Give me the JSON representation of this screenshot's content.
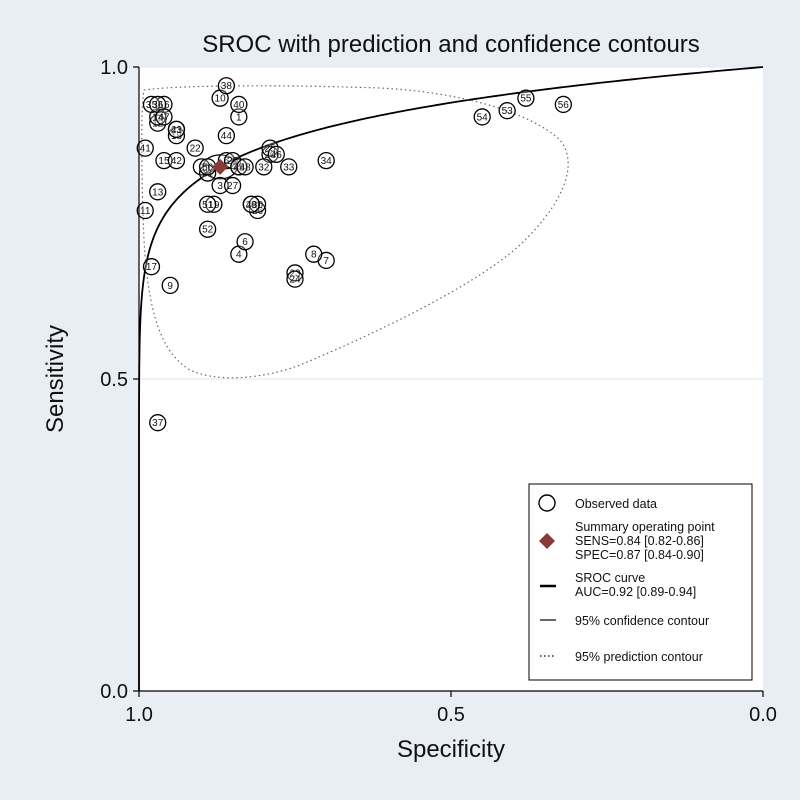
{
  "chart_data": {
    "type": "scatter",
    "title": "SROC with prediction and confidence contours",
    "xlabel": "Specificity",
    "ylabel": "Sensitivity",
    "xlim": [
      1.0,
      0.0
    ],
    "ylim": [
      0.0,
      1.0
    ],
    "x_ticks": [
      "1.0",
      "0.5",
      "0.0"
    ],
    "y_ticks": [
      "0.0",
      "0.5",
      "1.0"
    ],
    "grid": "horizontal",
    "legend_position": "bottom-right",
    "legend": {
      "observed": "Observed data",
      "summary_title": "Summary operating point",
      "summary_sens": "SENS=0.84 [0.82-0.86]",
      "summary_spec": "SPEC=0.87 [0.84-0.90]",
      "sroc_title": "SROC curve",
      "sroc_auc": "AUC=0.92 [0.89-0.94]",
      "confidence": "95% confidence contour",
      "prediction": "95% prediction contour"
    },
    "summary_point": {
      "specificity": 0.87,
      "sensitivity": 0.84
    },
    "colors": {
      "background": "#e8eef3",
      "plot_area": "#ffffff",
      "summary": "#8b3a3a",
      "grid": "#e6ecf1"
    },
    "points": [
      {
        "label": "1",
        "spec": 0.84,
        "sens": 0.92
      },
      {
        "label": "2",
        "spec": 0.9,
        "sens": 0.84
      },
      {
        "label": "3",
        "spec": 0.87,
        "sens": 0.81
      },
      {
        "label": "4",
        "spec": 0.84,
        "sens": 0.7
      },
      {
        "label": "5",
        "spec": 0.86,
        "sens": 0.85
      },
      {
        "label": "6",
        "spec": 0.83,
        "sens": 0.72
      },
      {
        "label": "7",
        "spec": 0.7,
        "sens": 0.69
      },
      {
        "label": "8",
        "spec": 0.72,
        "sens": 0.7
      },
      {
        "label": "9",
        "spec": 0.95,
        "sens": 0.65
      },
      {
        "label": "10",
        "spec": 0.87,
        "sens": 0.95
      },
      {
        "label": "11",
        "spec": 0.99,
        "sens": 0.77
      },
      {
        "label": "12",
        "spec": 0.97,
        "sens": 0.91
      },
      {
        "label": "13",
        "spec": 0.97,
        "sens": 0.8
      },
      {
        "label": "14",
        "spec": 0.97,
        "sens": 0.92
      },
      {
        "label": "15",
        "spec": 0.96,
        "sens": 0.85
      },
      {
        "label": "16",
        "spec": 0.96,
        "sens": 0.94
      },
      {
        "label": "17",
        "spec": 0.98,
        "sens": 0.68
      },
      {
        "label": "18",
        "spec": 0.94,
        "sens": 0.89
      },
      {
        "label": "19",
        "spec": 0.88,
        "sens": 0.78
      },
      {
        "label": "20",
        "spec": 0.79,
        "sens": 0.86
      },
      {
        "label": "21",
        "spec": 0.94,
        "sens": 0.9
      },
      {
        "label": "22",
        "spec": 0.91,
        "sens": 0.87
      },
      {
        "label": "23",
        "spec": 0.75,
        "sens": 0.67
      },
      {
        "label": "24",
        "spec": 0.75,
        "sens": 0.66
      },
      {
        "label": "25",
        "spec": 0.79,
        "sens": 0.87
      },
      {
        "label": "26",
        "spec": 0.81,
        "sens": 0.77
      },
      {
        "label": "27",
        "spec": 0.85,
        "sens": 0.81
      },
      {
        "label": "28",
        "spec": 0.82,
        "sens": 0.78
      },
      {
        "label": "29",
        "spec": 0.85,
        "sens": 0.85
      },
      {
        "label": "30",
        "spec": 0.81,
        "sens": 0.78
      },
      {
        "label": "31",
        "spec": 0.89,
        "sens": 0.83
      },
      {
        "label": "32",
        "spec": 0.8,
        "sens": 0.84
      },
      {
        "label": "33",
        "spec": 0.76,
        "sens": 0.84
      },
      {
        "label": "34",
        "spec": 0.7,
        "sens": 0.85
      },
      {
        "label": "35",
        "spec": 0.98,
        "sens": 0.94
      },
      {
        "label": "36",
        "spec": 0.97,
        "sens": 0.94
      },
      {
        "label": "37",
        "spec": 0.97,
        "sens": 0.43
      },
      {
        "label": "38",
        "spec": 0.86,
        "sens": 0.97
      },
      {
        "label": "39",
        "spec": 0.84,
        "sens": 0.84
      },
      {
        "label": "40",
        "spec": 0.84,
        "sens": 0.94
      },
      {
        "label": "41",
        "spec": 0.99,
        "sens": 0.87
      },
      {
        "label": "42",
        "spec": 0.94,
        "sens": 0.85
      },
      {
        "label": "43",
        "spec": 0.94,
        "sens": 0.9
      },
      {
        "label": "44",
        "spec": 0.86,
        "sens": 0.89
      },
      {
        "label": "45",
        "spec": 0.84,
        "sens": 0.84
      },
      {
        "label": "46",
        "spec": 0.78,
        "sens": 0.86
      },
      {
        "label": "47",
        "spec": 0.96,
        "sens": 0.92
      },
      {
        "label": "48",
        "spec": 0.83,
        "sens": 0.84
      },
      {
        "label": "49",
        "spec": 0.82,
        "sens": 0.78
      },
      {
        "label": "50",
        "spec": 0.89,
        "sens": 0.84
      },
      {
        "label": "51",
        "spec": 0.89,
        "sens": 0.78
      },
      {
        "label": "52",
        "spec": 0.89,
        "sens": 0.74
      },
      {
        "label": "53",
        "spec": 0.41,
        "sens": 0.93
      },
      {
        "label": "54",
        "spec": 0.45,
        "sens": 0.92
      },
      {
        "label": "55",
        "spec": 0.38,
        "sens": 0.95
      },
      {
        "label": "56",
        "spec": 0.32,
        "sens": 0.94
      }
    ]
  }
}
